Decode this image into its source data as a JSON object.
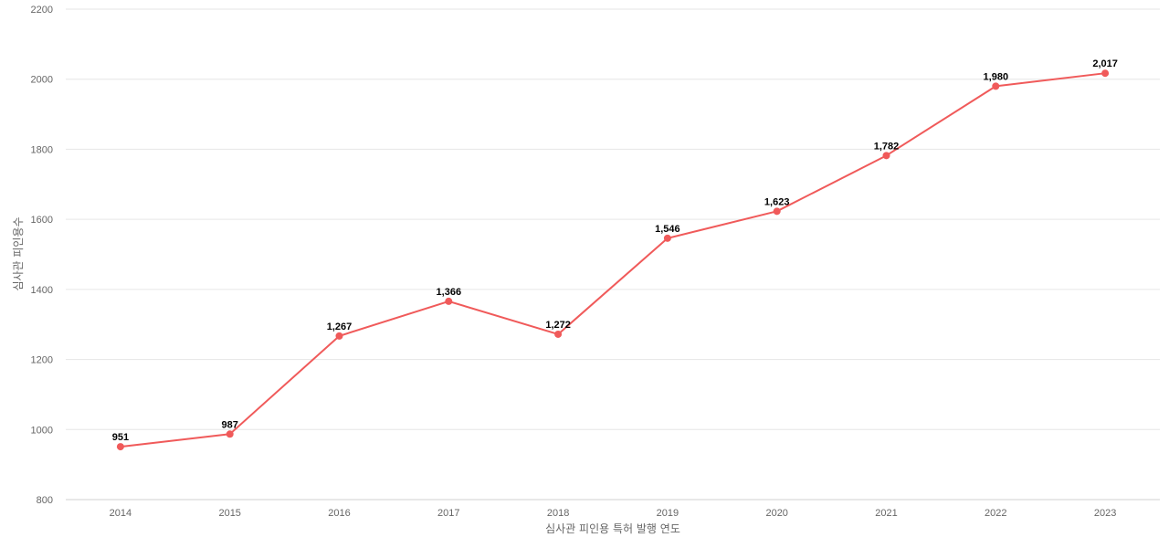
{
  "chart_data": {
    "type": "line",
    "title": "",
    "xlabel": "심사관 피인용 특허 발행 연도",
    "ylabel": "심사관 피인용수",
    "categories": [
      "2014",
      "2015",
      "2016",
      "2017",
      "2018",
      "2019",
      "2020",
      "2021",
      "2022",
      "2023"
    ],
    "series": [
      {
        "values": [
          951,
          987,
          1267,
          1366,
          1272,
          1546,
          1623,
          1782,
          1980,
          2017
        ],
        "labels": [
          "951",
          "987",
          "1,267",
          "1,366",
          "1,272",
          "1,546",
          "1,623",
          "1,782",
          "1,980",
          "2,017"
        ],
        "color": "#f05a5a"
      }
    ],
    "ylim": [
      800,
      2200
    ],
    "yticks": [
      "800",
      "1000",
      "1200",
      "1400",
      "1600",
      "1800",
      "2000",
      "2200"
    ],
    "grid": true,
    "legend": "none"
  }
}
